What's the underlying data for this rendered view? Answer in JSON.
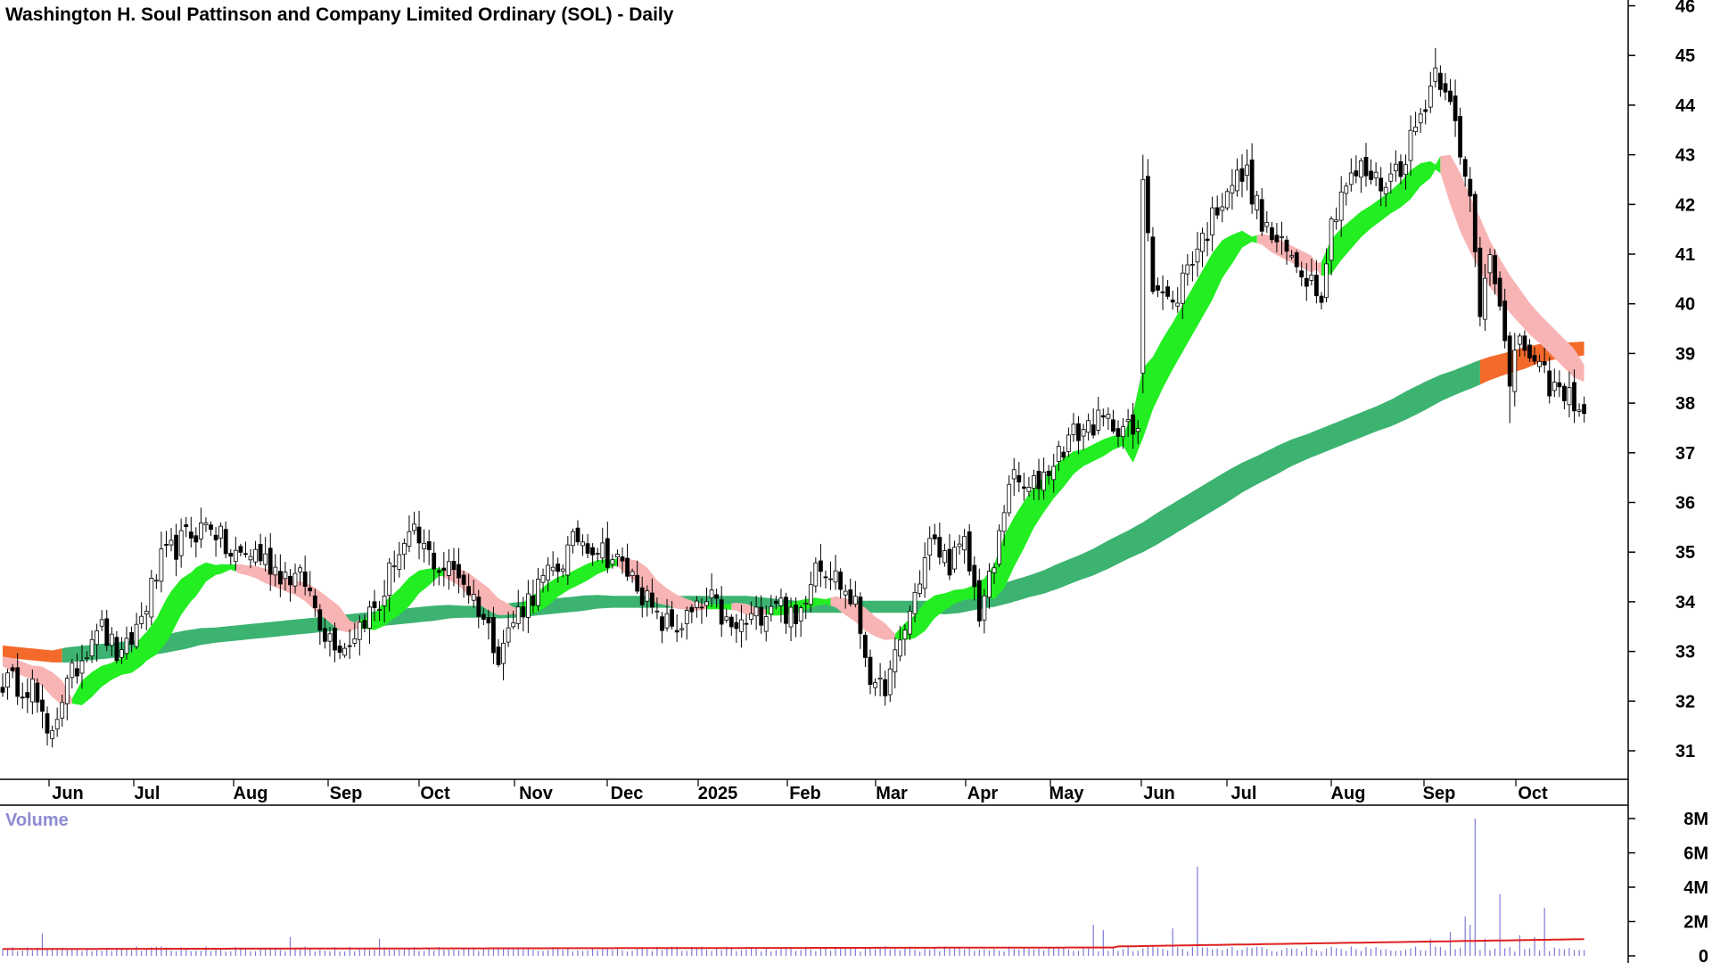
{
  "chart_data": {
    "type": "candlestick",
    "title": "Washington H. Soul Pattinson and Company Limited Ordinary (SOL) - Daily",
    "price_axis": {
      "ticks": [
        31,
        32,
        33,
        34,
        35,
        36,
        37,
        38,
        39,
        40,
        41,
        42,
        43,
        44,
        45,
        46
      ],
      "ylim": [
        30.4,
        46
      ]
    },
    "x_labels": [
      "Jun",
      "Jul",
      "Aug",
      "Sep",
      "Oct",
      "Nov",
      "Dec",
      "2025",
      "Feb",
      "Mar",
      "Apr",
      "May",
      "Jun",
      "Jul",
      "Aug",
      "Sep",
      "Oct"
    ],
    "volume_panel": {
      "label": "Volume",
      "ticks": [
        "0",
        "2M",
        "4M",
        "6M",
        "8M"
      ],
      "tick_values": [
        0,
        2,
        4,
        6,
        8
      ],
      "unit": "millions"
    },
    "price_anchors": [
      [
        0,
        32.4
      ],
      [
        6,
        32.3
      ],
      [
        9,
        31.2
      ],
      [
        12,
        32.1
      ],
      [
        16,
        32.9
      ],
      [
        19,
        33.6
      ],
      [
        24,
        32.8
      ],
      [
        28,
        33.7
      ],
      [
        32,
        34.8
      ],
      [
        37,
        35.3
      ],
      [
        42,
        35.6
      ],
      [
        46,
        34.9
      ],
      [
        51,
        35.0
      ],
      [
        56,
        34.6
      ],
      [
        61,
        34.4
      ],
      [
        65,
        33.4
      ],
      [
        69,
        33.1
      ],
      [
        73,
        33.7
      ],
      [
        76,
        33.9
      ],
      [
        79,
        34.9
      ],
      [
        83,
        35.3
      ],
      [
        88,
        34.7
      ],
      [
        92,
        34.6
      ],
      [
        96,
        33.9
      ],
      [
        100,
        33.0
      ],
      [
        104,
        33.8
      ],
      [
        108,
        34.3
      ],
      [
        112,
        34.7
      ],
      [
        116,
        35.3
      ],
      [
        120,
        35.1
      ],
      [
        124,
        34.8
      ],
      [
        128,
        34.4
      ],
      [
        132,
        33.6
      ],
      [
        136,
        33.5
      ],
      [
        140,
        33.8
      ],
      [
        143,
        34.0
      ],
      [
        147,
        33.4
      ],
      [
        152,
        33.7
      ],
      [
        156,
        34.1
      ],
      [
        160,
        33.5
      ],
      [
        164,
        34.9
      ],
      [
        168,
        34.5
      ],
      [
        172,
        33.9
      ],
      [
        176,
        32.1
      ],
      [
        179,
        32.5
      ],
      [
        183,
        33.8
      ],
      [
        187,
        35.2
      ],
      [
        191,
        34.8
      ],
      [
        194,
        35.1
      ],
      [
        197,
        33.8
      ],
      [
        200,
        34.7
      ],
      [
        203,
        36.5
      ],
      [
        207,
        36.2
      ],
      [
        211,
        36.7
      ],
      [
        215,
        37.3
      ],
      [
        220,
        37.6
      ],
      [
        225,
        37.6
      ],
      [
        229,
        37.3
      ],
      [
        230,
        42.6
      ],
      [
        232,
        40.5
      ],
      [
        236,
        39.9
      ],
      [
        239,
        40.8
      ],
      [
        243,
        41.5
      ],
      [
        247,
        42.4
      ],
      [
        251,
        42.6
      ],
      [
        254,
        41.6
      ],
      [
        258,
        41.1
      ],
      [
        262,
        40.7
      ],
      [
        266,
        40.3
      ],
      [
        268,
        41.6
      ],
      [
        270,
        42.3
      ],
      [
        274,
        42.7
      ],
      [
        278,
        42.4
      ],
      [
        282,
        42.8
      ],
      [
        286,
        43.8
      ],
      [
        289,
        44.7
      ],
      [
        292,
        44.3
      ],
      [
        294,
        42.8
      ],
      [
        296,
        42.1
      ],
      [
        298,
        39.9
      ],
      [
        300,
        41.2
      ],
      [
        302,
        40.1
      ],
      [
        304,
        38.2
      ],
      [
        306,
        39.4
      ],
      [
        309,
        38.7
      ],
      [
        312,
        38.4
      ],
      [
        315,
        38.1
      ],
      [
        317,
        38.1
      ],
      [
        319,
        37.8
      ]
    ],
    "ma_short_anchors": [
      [
        0,
        32.8
      ],
      [
        8,
        32.5
      ],
      [
        14,
        32.0
      ],
      [
        20,
        32.5
      ],
      [
        26,
        32.8
      ],
      [
        31,
        33.3
      ],
      [
        36,
        34.1
      ],
      [
        41,
        34.6
      ],
      [
        46,
        34.7
      ],
      [
        51,
        34.6
      ],
      [
        56,
        34.4
      ],
      [
        61,
        34.2
      ],
      [
        65,
        33.9
      ],
      [
        70,
        33.5
      ],
      [
        75,
        33.6
      ],
      [
        80,
        34.0
      ],
      [
        84,
        34.4
      ],
      [
        88,
        34.6
      ],
      [
        92,
        34.5
      ],
      [
        96,
        34.2
      ],
      [
        100,
        33.9
      ],
      [
        104,
        33.8
      ],
      [
        108,
        34.0
      ],
      [
        112,
        34.3
      ],
      [
        116,
        34.5
      ],
      [
        120,
        34.7
      ],
      [
        124,
        34.8
      ],
      [
        128,
        34.6
      ],
      [
        132,
        34.2
      ],
      [
        136,
        34.0
      ],
      [
        140,
        33.9
      ],
      [
        144,
        33.9
      ],
      [
        148,
        33.9
      ],
      [
        152,
        33.8
      ],
      [
        156,
        33.8
      ],
      [
        160,
        33.9
      ],
      [
        164,
        34.0
      ],
      [
        168,
        34.0
      ],
      [
        172,
        33.8
      ],
      [
        176,
        33.5
      ],
      [
        180,
        33.3
      ],
      [
        184,
        33.5
      ],
      [
        188,
        33.9
      ],
      [
        192,
        34.1
      ],
      [
        196,
        34.2
      ],
      [
        200,
        34.4
      ],
      [
        204,
        35.2
      ],
      [
        208,
        35.9
      ],
      [
        212,
        36.4
      ],
      [
        216,
        36.8
      ],
      [
        220,
        37.0
      ],
      [
        224,
        37.2
      ],
      [
        228,
        37.3
      ],
      [
        230,
        38.0
      ],
      [
        234,
        38.8
      ],
      [
        238,
        39.5
      ],
      [
        242,
        40.2
      ],
      [
        246,
        40.9
      ],
      [
        250,
        41.3
      ],
      [
        254,
        41.3
      ],
      [
        258,
        41.1
      ],
      [
        262,
        40.9
      ],
      [
        266,
        40.7
      ],
      [
        270,
        41.2
      ],
      [
        274,
        41.6
      ],
      [
        278,
        41.9
      ],
      [
        282,
        42.2
      ],
      [
        286,
        42.6
      ],
      [
        290,
        42.8
      ],
      [
        292,
        42.5
      ],
      [
        296,
        41.6
      ],
      [
        300,
        40.8
      ],
      [
        304,
        40.2
      ],
      [
        308,
        39.7
      ],
      [
        312,
        39.3
      ],
      [
        316,
        38.9
      ],
      [
        319,
        38.6
      ]
    ],
    "ma_long_anchors": [
      [
        0,
        33.0
      ],
      [
        10,
        32.9
      ],
      [
        20,
        33.0
      ],
      [
        30,
        33.1
      ],
      [
        40,
        33.3
      ],
      [
        50,
        33.4
      ],
      [
        60,
        33.5
      ],
      [
        70,
        33.6
      ],
      [
        80,
        33.7
      ],
      [
        90,
        33.8
      ],
      [
        100,
        33.8
      ],
      [
        110,
        33.9
      ],
      [
        120,
        34.0
      ],
      [
        130,
        34.0
      ],
      [
        140,
        34.0
      ],
      [
        150,
        34.0
      ],
      [
        160,
        33.9
      ],
      [
        170,
        33.9
      ],
      [
        180,
        33.9
      ],
      [
        190,
        33.9
      ],
      [
        200,
        34.1
      ],
      [
        210,
        34.4
      ],
      [
        220,
        34.8
      ],
      [
        230,
        35.3
      ],
      [
        240,
        35.9
      ],
      [
        250,
        36.5
      ],
      [
        260,
        37.0
      ],
      [
        270,
        37.4
      ],
      [
        280,
        37.8
      ],
      [
        290,
        38.3
      ],
      [
        300,
        38.7
      ],
      [
        310,
        39.0
      ],
      [
        319,
        39.1
      ]
    ],
    "volume_spikes": [
      [
        8,
        1.3
      ],
      [
        58,
        1.1
      ],
      [
        76,
        1.0
      ],
      [
        220,
        1.8
      ],
      [
        222,
        1.5
      ],
      [
        236,
        1.6
      ],
      [
        241,
        5.2
      ],
      [
        288,
        1.0
      ],
      [
        292,
        1.4
      ],
      [
        295,
        2.3
      ],
      [
        296,
        1.8
      ],
      [
        297,
        8.0
      ],
      [
        299,
        1.0
      ],
      [
        302,
        3.6
      ],
      [
        306,
        1.2
      ],
      [
        309,
        1.1
      ],
      [
        311,
        2.8
      ]
    ]
  }
}
